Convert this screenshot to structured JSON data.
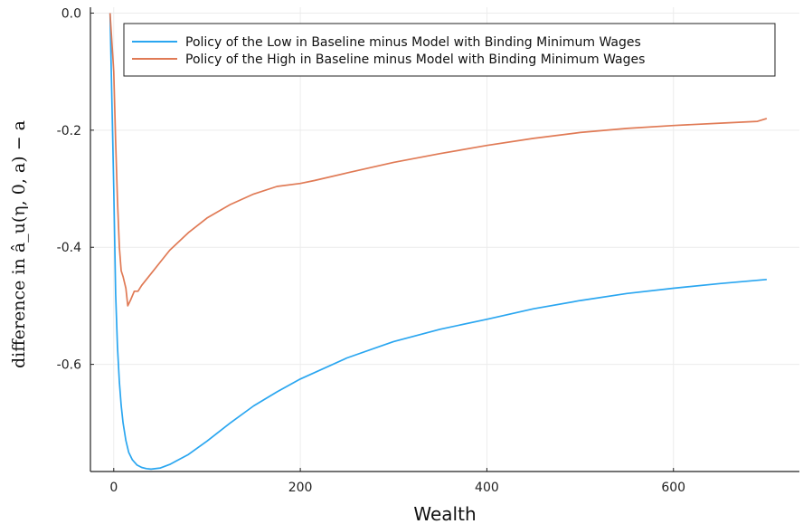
{
  "chart_data": {
    "type": "line",
    "xlabel": "Wealth",
    "ylabel": "difference in â_u(η, 0, a) − a",
    "xlim": [
      -25,
      735
    ],
    "ylim": [
      -0.783,
      0.01
    ],
    "xticks": [
      0,
      200,
      400,
      600
    ],
    "xtick_labels": [
      "0",
      "200",
      "400",
      "600"
    ],
    "yticks": [
      0.0,
      -0.2,
      -0.4,
      -0.6
    ],
    "ytick_labels": [
      "0.0",
      "-0.2",
      "-0.4",
      "-0.6"
    ],
    "grid": true,
    "legend_position": "top-right",
    "series": [
      {
        "name": "Policy of the Low in Baseline minus Model with Binding Minimum Wages",
        "color": "#2aa6f0",
        "x": [
          -4,
          0,
          2,
          4,
          6,
          8,
          10,
          13,
          16,
          20,
          25,
          30,
          35,
          40,
          50,
          60,
          80,
          100,
          125,
          150,
          175,
          200,
          250,
          300,
          350,
          400,
          450,
          500,
          550,
          600,
          650,
          700
        ],
        "y": [
          0.0,
          -0.3,
          -0.48,
          -0.57,
          -0.63,
          -0.67,
          -0.7,
          -0.73,
          -0.75,
          -0.763,
          -0.772,
          -0.776,
          -0.778,
          -0.779,
          -0.777,
          -0.771,
          -0.754,
          -0.731,
          -0.7,
          -0.671,
          -0.647,
          -0.625,
          -0.589,
          -0.561,
          -0.54,
          -0.523,
          -0.505,
          -0.491,
          -0.479,
          -0.47,
          -0.462,
          -0.455
        ]
      },
      {
        "name": "Policy of the High in Baseline minus Model with Binding Minimum Wages",
        "color": "#e07a55",
        "x": [
          -4,
          0,
          2,
          4,
          6,
          8,
          10,
          13,
          15,
          18,
          22,
          26,
          30,
          35,
          40,
          50,
          60,
          80,
          100,
          125,
          150,
          175,
          200,
          215,
          250,
          300,
          350,
          400,
          450,
          500,
          550,
          600,
          650,
          690,
          700
        ],
        "y": [
          0.0,
          -0.1,
          -0.22,
          -0.32,
          -0.4,
          -0.44,
          -0.45,
          -0.47,
          -0.5,
          -0.49,
          -0.475,
          -0.475,
          -0.465,
          -0.455,
          -0.445,
          -0.425,
          -0.405,
          -0.375,
          -0.35,
          -0.327,
          -0.309,
          -0.296,
          -0.291,
          -0.286,
          -0.273,
          -0.255,
          -0.24,
          -0.226,
          -0.214,
          -0.204,
          -0.197,
          -0.192,
          -0.188,
          -0.185,
          -0.18
        ]
      }
    ]
  }
}
